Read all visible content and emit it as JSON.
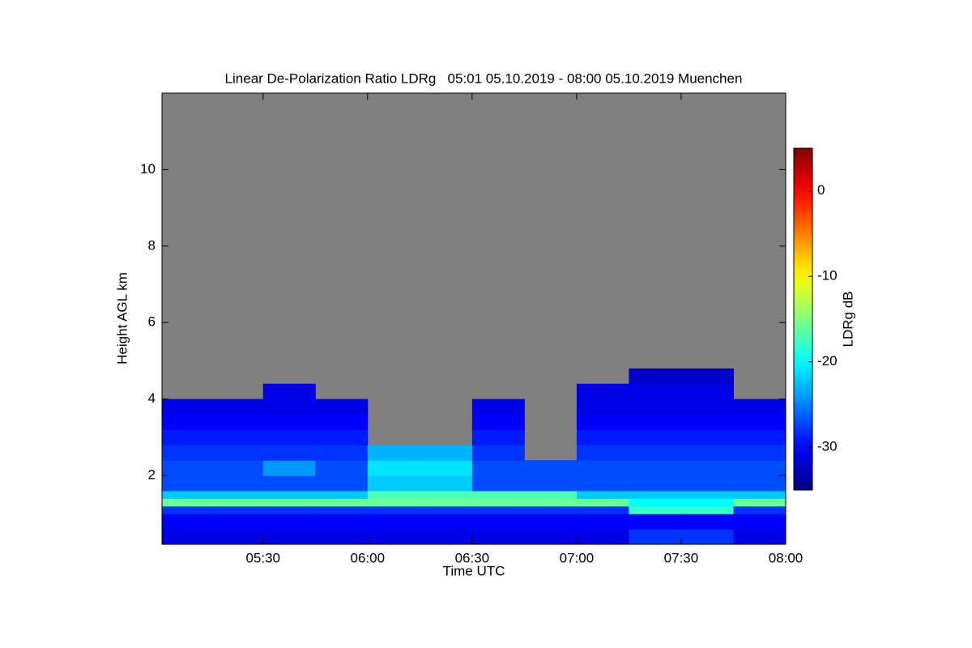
{
  "chart_data": {
    "type": "heatmap",
    "title": "Linear De-Polarization Ratio LDRg   05:01 05.10.2019 - 08:00 05.10.2019 Muenchen",
    "xlabel": "Time UTC",
    "ylabel": "Height AGL km",
    "colorbar_label": "LDRg dB",
    "colormap": "jet",
    "nodata_color": "#808080",
    "x_bins": [
      5.0167,
      5.25,
      5.5,
      5.75,
      6,
      6.25,
      6.5,
      6.75,
      7,
      7.25,
      7.5,
      7.75,
      8
    ],
    "y_bins": [
      0.2,
      0.6,
      1.0,
      1.2,
      1.4,
      1.6,
      2.0,
      2.4,
      2.8,
      3.2,
      3.6,
      4.0,
      4.4,
      4.8
    ],
    "z": [
      [
        -31,
        -31,
        -31,
        -31,
        -31,
        -31,
        -31,
        -31,
        -31,
        -28,
        -28,
        -31
      ],
      [
        -30,
        -30,
        -30,
        -30,
        -30,
        -30,
        -30,
        -30,
        -30,
        -30,
        -30,
        -30
      ],
      [
        -28,
        -28,
        -28,
        -28,
        -28,
        -28,
        -28,
        -28,
        -28,
        -18,
        -18,
        -28
      ],
      [
        -16,
        -16,
        -16,
        -16,
        -16,
        -16,
        -16,
        -16,
        -16,
        -20,
        -20,
        -16
      ],
      [
        -22,
        -22,
        -22,
        -22,
        -17,
        -17,
        -17,
        -17,
        -22,
        -22,
        -22,
        -22
      ],
      [
        -27,
        -27,
        -27,
        -27,
        -22,
        -22,
        -27,
        -27,
        -27,
        -27,
        -27,
        -27
      ],
      [
        -27,
        -27,
        -24,
        -27,
        -21,
        -21,
        -27,
        -27,
        -27,
        -27,
        -27,
        -27
      ],
      [
        -28,
        -28,
        -28,
        -28,
        -23,
        -23,
        -28,
        null,
        -28,
        -28,
        -28,
        -28
      ],
      [
        -29,
        -29,
        -29,
        -29,
        null,
        null,
        -29,
        null,
        -29,
        -29,
        -29,
        -29
      ],
      [
        -30,
        -30,
        -30,
        -30,
        null,
        null,
        -30,
        null,
        -30,
        -30,
        -30,
        -30
      ],
      [
        -31,
        -31,
        -31,
        -31,
        null,
        null,
        -31,
        null,
        -31,
        -31,
        -31,
        -31
      ],
      [
        null,
        null,
        -31,
        null,
        null,
        null,
        null,
        null,
        -31,
        -31,
        -31,
        null
      ],
      [
        null,
        null,
        null,
        null,
        null,
        null,
        null,
        null,
        null,
        -32,
        -32,
        null
      ]
    ],
    "xlim": [
      5.0167,
      8
    ],
    "xticks": [
      {
        "value": 5.5,
        "label": "05:30"
      },
      {
        "value": 6,
        "label": "06:00"
      },
      {
        "value": 6.5,
        "label": "06:30"
      },
      {
        "value": 7,
        "label": "07:00"
      },
      {
        "value": 7.5,
        "label": "07:30"
      },
      {
        "value": 8,
        "label": "08:00"
      }
    ],
    "ylim": [
      0.2,
      12
    ],
    "yticks": [
      2,
      4,
      6,
      8,
      10
    ],
    "zlim": [
      -35,
      5
    ],
    "zticks": [
      -30,
      -20,
      -10,
      0
    ]
  }
}
